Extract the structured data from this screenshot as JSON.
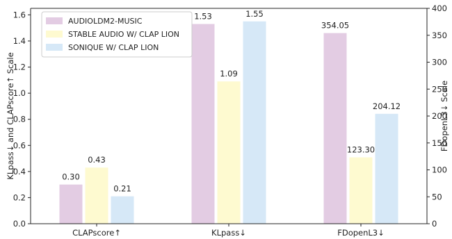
{
  "chart_data": {
    "type": "bar",
    "categories": [
      "CLAPscore↑",
      "KLpass↓",
      "FDopenL3↓"
    ],
    "series": [
      {
        "name": "AUDIOLDM2-MUSIC",
        "color": "#e3cce3",
        "values": [
          0.3,
          1.53,
          354.05
        ],
        "labels": [
          "0.30",
          "1.53",
          "354.05"
        ]
      },
      {
        "name": "STABLE AUDIO W/ CLAP LION",
        "color": "#fefad0",
        "values": [
          0.43,
          1.09,
          123.3
        ],
        "labels": [
          "0.43",
          "1.09",
          "123.30"
        ]
      },
      {
        "name": "SONIQUE W/ CLAP LION",
        "color": "#d6e8f7",
        "values": [
          0.21,
          1.55,
          204.12
        ],
        "labels": [
          "0.21",
          "1.55",
          "204.12"
        ]
      }
    ],
    "category_axis": [
      "left",
      "left",
      "right"
    ],
    "ylabel_left": "KLpass↓ and CLAPscore↑ Scale",
    "ylabel_right": "FDopenL3↓ Scale",
    "ylim_left": [
      0,
      1.65
    ],
    "ylim_right": [
      0,
      400
    ],
    "yticks_left": [
      "0.0",
      "0.2",
      "0.4",
      "0.6",
      "0.8",
      "1.0",
      "1.2",
      "1.4",
      "1.6"
    ],
    "yticks_right": [
      "0",
      "50",
      "100",
      "150",
      "200",
      "250",
      "300",
      "350",
      "400"
    ],
    "legend_position": "top-left",
    "grid": false
  }
}
